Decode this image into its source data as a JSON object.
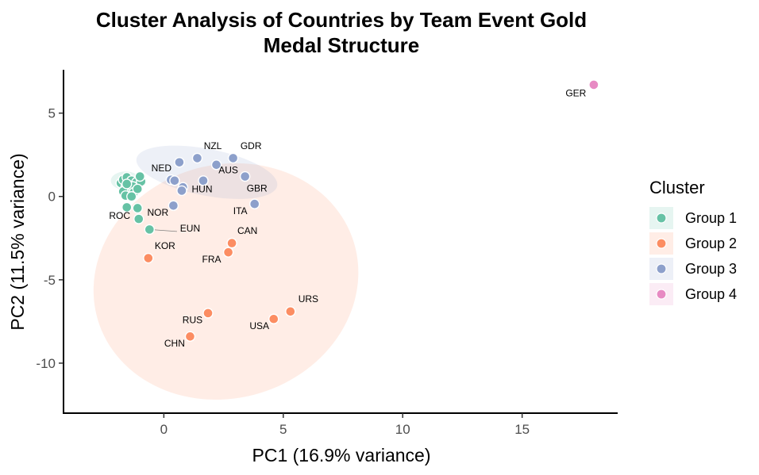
{
  "chart_data": {
    "type": "scatter",
    "title_line1": "Cluster Analysis of Countries by Team Event Gold",
    "title_line2": "Medal Structure",
    "xlabel": "PC1 (16.9% variance)",
    "ylabel": "PC2 (11.5% variance)",
    "xlim": [
      -4.2,
      19
    ],
    "ylim": [
      -13,
      7.6
    ],
    "x_ticks": [
      0,
      5,
      10,
      15
    ],
    "y_ticks": [
      5,
      0,
      -5,
      -10
    ],
    "x_tick_labels": [
      "0",
      "5",
      "10",
      "15"
    ],
    "y_tick_labels": [
      "5",
      "0",
      "-5",
      "-10"
    ],
    "legend": {
      "title": "Cluster",
      "entries": [
        {
          "label": "Group 1",
          "color": "#66c2a5"
        },
        {
          "label": "Group 2",
          "color": "#fc8d62"
        },
        {
          "label": "Group 3",
          "color": "#8da0cb"
        },
        {
          "label": "Group 4",
          "color": "#e78ac3"
        }
      ]
    },
    "ellipses": [
      {
        "group": "Group 2",
        "cx": 2.6,
        "cy": -5.1,
        "rx": 5.6,
        "ry": 7.0,
        "angle": -17
      },
      {
        "group": "Group 3",
        "cx": 1.8,
        "cy": 1.45,
        "rx": 3.0,
        "ry": 1.4,
        "angle": 11
      },
      {
        "group": "Group 1",
        "cx": -1.6,
        "cy": 0.95,
        "rx": 0.62,
        "ry": 0.55,
        "angle": 0
      }
    ],
    "series": [
      {
        "name": "Group 1",
        "color": "#66c2a5",
        "points": [
          {
            "x": -1.8,
            "y": 0.8
          },
          {
            "x": -1.7,
            "y": 1.0
          },
          {
            "x": -1.55,
            "y": 1.15
          },
          {
            "x": -1.35,
            "y": 0.95
          },
          {
            "x": -1.15,
            "y": 0.85
          },
          {
            "x": -0.95,
            "y": 0.9
          },
          {
            "x": -1.0,
            "y": 1.2
          },
          {
            "x": -1.6,
            "y": 0.55
          },
          {
            "x": -1.45,
            "y": 0.4
          },
          {
            "x": -1.7,
            "y": 0.3
          },
          {
            "x": -1.3,
            "y": 0.6
          },
          {
            "x": -1.55,
            "y": 0.75
          },
          {
            "x": -1.25,
            "y": 0.25
          },
          {
            "x": -1.6,
            "y": 0.05
          },
          {
            "x": -1.35,
            "y": 0.0
          },
          {
            "x": -1.1,
            "y": 0.45
          },
          {
            "x": -1.55,
            "y": -0.65
          },
          {
            "x": -1.1,
            "y": -0.7
          },
          {
            "x": -1.05,
            "y": -1.35
          },
          {
            "x": -0.6,
            "y": -1.98
          }
        ],
        "labels": [
          {
            "text": "ROC",
            "x": -1.85,
            "y": -1.35
          },
          {
            "text": "NOR",
            "x": -0.25,
            "y": -1.15
          },
          {
            "text": "EUN",
            "x": 1.1,
            "y": -2.1
          }
        ]
      },
      {
        "name": "Group 2",
        "color": "#fc8d62",
        "points": [
          {
            "x": -0.65,
            "y": -3.7
          },
          {
            "x": 2.85,
            "y": -2.8
          },
          {
            "x": 2.7,
            "y": -3.35
          },
          {
            "x": 5.3,
            "y": -6.9
          },
          {
            "x": 4.6,
            "y": -7.35
          },
          {
            "x": 1.85,
            "y": -7.0
          },
          {
            "x": 1.1,
            "y": -8.4
          }
        ],
        "labels": [
          {
            "text": "KOR",
            "x": 0.05,
            "y": -3.15
          },
          {
            "text": "CAN",
            "x": 3.5,
            "y": -2.25
          },
          {
            "text": "FRA",
            "x": 2.0,
            "y": -3.95
          },
          {
            "text": "URS",
            "x": 6.05,
            "y": -6.35
          },
          {
            "text": "USA",
            "x": 4.0,
            "y": -7.95
          },
          {
            "text": "RUS",
            "x": 1.2,
            "y": -7.6
          },
          {
            "text": "CHN",
            "x": 0.45,
            "y": -9.0
          }
        ]
      },
      {
        "name": "Group 3",
        "color": "#8da0cb",
        "points": [
          {
            "x": 1.4,
            "y": 2.3
          },
          {
            "x": 2.9,
            "y": 2.3
          },
          {
            "x": 0.65,
            "y": 2.05
          },
          {
            "x": 2.2,
            "y": 1.9
          },
          {
            "x": 3.4,
            "y": 1.2
          },
          {
            "x": 0.3,
            "y": 1.0
          },
          {
            "x": 0.45,
            "y": 0.95
          },
          {
            "x": 1.65,
            "y": 0.95
          },
          {
            "x": 0.8,
            "y": 0.55
          },
          {
            "x": 0.75,
            "y": 0.35
          },
          {
            "x": 3.8,
            "y": -0.45
          },
          {
            "x": 0.4,
            "y": -0.55
          }
        ],
        "labels": [
          {
            "text": "NZL",
            "x": 2.05,
            "y": 2.85
          },
          {
            "text": "GDR",
            "x": 3.65,
            "y": 2.85
          },
          {
            "text": "NED",
            "x": -0.1,
            "y": 1.5
          },
          {
            "text": "AUS",
            "x": 2.7,
            "y": 1.4
          },
          {
            "text": "HUN",
            "x": 1.6,
            "y": 0.25
          },
          {
            "text": "GBR",
            "x": 3.9,
            "y": 0.3
          },
          {
            "text": "ITA",
            "x": 3.2,
            "y": -1.05
          }
        ]
      },
      {
        "name": "Group 4",
        "color": "#e78ac3",
        "points": [
          {
            "x": 18.0,
            "y": 6.7
          }
        ],
        "labels": [
          {
            "text": "GER",
            "x": 17.25,
            "y": 6.0
          }
        ]
      }
    ],
    "leader_lines": [
      {
        "from": {
          "x": -0.6,
          "y": -1.98
        },
        "to": {
          "x": 0.55,
          "y": -2.1
        }
      }
    ]
  }
}
